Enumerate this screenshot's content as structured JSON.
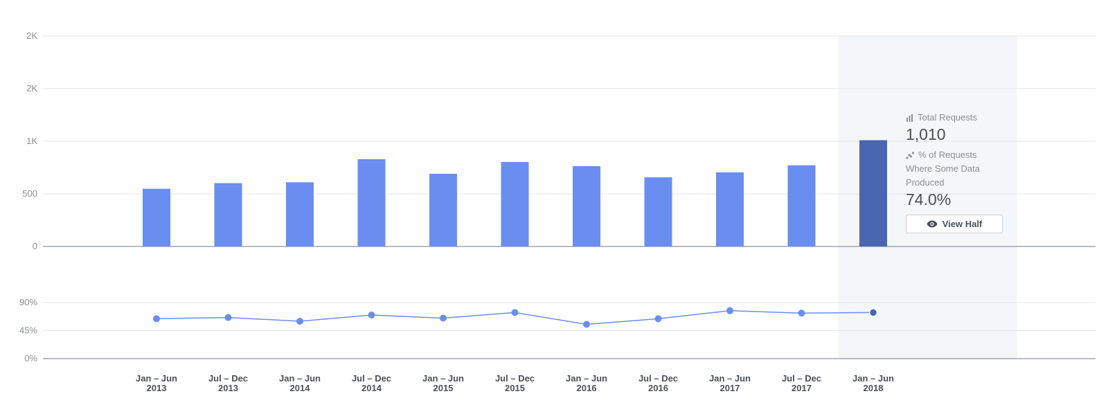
{
  "chart_data": [
    {
      "type": "bar",
      "categories": [
        "Jan – Jun\n2013",
        "Jul – Dec\n2013",
        "Jan – Jun\n2014",
        "Jul – Dec\n2014",
        "Jan – Jun\n2015",
        "Jul – Dec\n2015",
        "Jan – Jun\n2016",
        "Jul – Dec\n2016",
        "Jan – Jun\n2017",
        "Jul – Dec\n2017",
        "Jan – Jun\n2018"
      ],
      "values": [
        548,
        602,
        610,
        830,
        691,
        803,
        763,
        657,
        704,
        771,
        1010
      ],
      "yticks": [
        0,
        500,
        1000,
        1500,
        2000
      ],
      "ytick_labels": [
        "0",
        "500",
        "1K",
        "2K",
        "2K"
      ],
      "ylim": [
        0,
        2000
      ],
      "highlight_index": 10,
      "colors": {
        "bar": "#6a8eef",
        "highlight": "#4866b2"
      }
    },
    {
      "type": "line",
      "categories": [
        "Jan – Jun\n2013",
        "Jul – Dec\n2013",
        "Jan – Jun\n2014",
        "Jul – Dec\n2014",
        "Jan – Jun\n2015",
        "Jul – Dec\n2015",
        "Jan – Jun\n2016",
        "Jul – Dec\n2016",
        "Jan – Jun\n2017",
        "Jul – Dec\n2017",
        "Jan – Jun\n2018"
      ],
      "values": [
        64,
        66,
        60,
        70,
        65,
        74,
        55,
        64,
        77,
        73,
        74
      ],
      "yticks": [
        0,
        45,
        90
      ],
      "ytick_labels": [
        "0%",
        "45%",
        "90%"
      ],
      "ylim": [
        0,
        90
      ],
      "highlight_index": 10,
      "colors": {
        "line": "#6a8eef",
        "highlight": "#4866b2"
      }
    }
  ],
  "tooltip": {
    "total_label": "Total Requests",
    "total_value": "1,010",
    "pct_label_line1": "% of Requests",
    "pct_label_line2": "Where Some Data",
    "pct_label_line3": "Produced",
    "pct_value": "74.0%",
    "button_label": "View Half",
    "icons": [
      "bar-chart-icon",
      "scatter-trend-icon",
      "eye-icon"
    ]
  }
}
